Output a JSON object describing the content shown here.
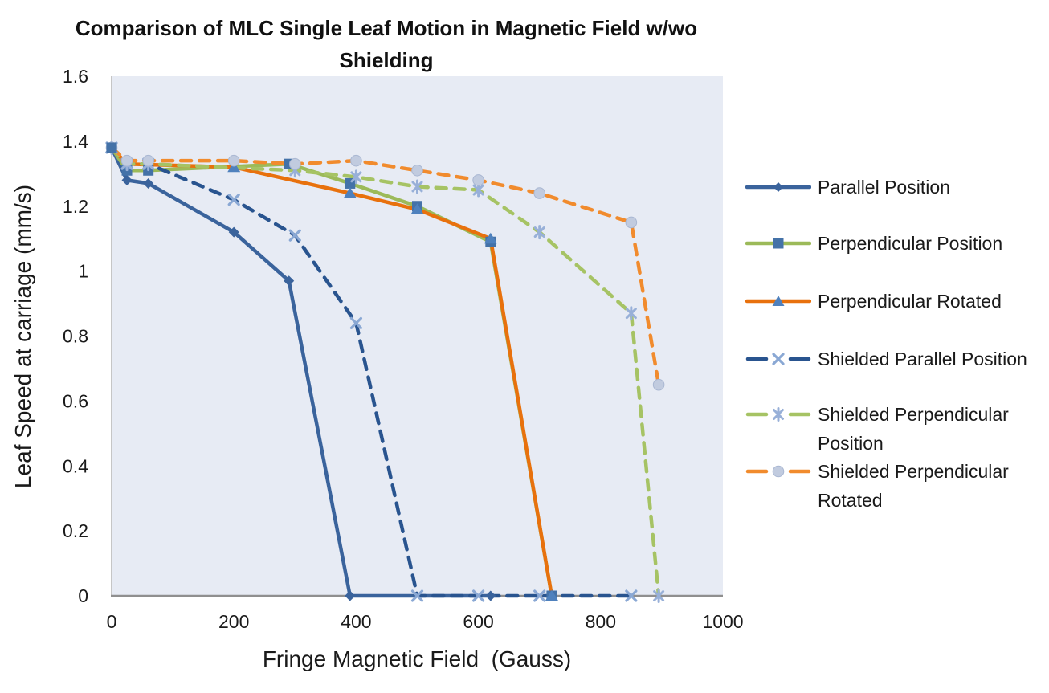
{
  "chart_data": {
    "type": "line",
    "title": "Comparison of MLC Single Leaf Motion in Magnetic Field w/wo Shielding",
    "title_lines": [
      "Comparison of MLC Single Leaf Motion in Magnetic Field w/wo",
      "Shielding"
    ],
    "xlabel": "Fringe Magnetic Field  (Gauss)",
    "ylabel": "Leaf Speed at carriage (mm/s)",
    "xlim": [
      0,
      1000
    ],
    "ylim": [
      0,
      1.6
    ],
    "x_ticks": [
      "0",
      "200",
      "400",
      "600",
      "800",
      "1000"
    ],
    "y_ticks": [
      "0",
      "0.2",
      "0.4",
      "0.6",
      "0.8",
      "1",
      "1.2",
      "1.4",
      "1.6"
    ],
    "grid": false,
    "legend_position": "right",
    "plot_bg_color": "#e7ebf4",
    "axis_line_color": "#8f8f8f",
    "y_axis_line_color": "#b3b3b3",
    "text_color": "#1a1a1a",
    "series": [
      {
        "name": "Parallel Position",
        "line_style": "solid",
        "color": "#3a639c",
        "marker": "diamond",
        "marker_color": "#3a639c",
        "x": [
          0,
          25,
          60,
          200,
          290,
          390,
          620
        ],
        "y": [
          1.38,
          1.28,
          1.27,
          1.12,
          0.97,
          0,
          0
        ]
      },
      {
        "name": "Perpendicular Position",
        "line_style": "solid",
        "color": "#9cba59",
        "marker": "square",
        "marker_color": "#4472a8",
        "x": [
          0,
          25,
          60,
          290,
          390,
          500,
          620,
          720
        ],
        "y": [
          1.38,
          1.31,
          1.31,
          1.33,
          1.27,
          1.2,
          1.09,
          0
        ]
      },
      {
        "name": "Perpendicular Rotated",
        "line_style": "solid",
        "color": "#e8710d",
        "marker": "triangle",
        "marker_color": "#4f81bd",
        "x": [
          0,
          25,
          200,
          390,
          500,
          620,
          720
        ],
        "y": [
          1.38,
          1.33,
          1.32,
          1.24,
          1.19,
          1.1,
          0
        ]
      },
      {
        "name": "Shielded Parallel Position",
        "line_style": "dashed",
        "color": "#29548f",
        "marker": "x",
        "marker_color": "#8aa8d4",
        "x": [
          0,
          25,
          60,
          200,
          300,
          400,
          500,
          600,
          700,
          850
        ],
        "y": [
          1.38,
          1.33,
          1.33,
          1.22,
          1.11,
          0.84,
          0,
          0,
          0,
          0
        ]
      },
      {
        "name": "Shielded Perpendicular Position",
        "line_style": "dashed",
        "color": "#a6c364",
        "marker": "star",
        "marker_color": "#98b0d8",
        "x": [
          0,
          25,
          60,
          300,
          400,
          500,
          600,
          700,
          850,
          895
        ],
        "y": [
          1.38,
          1.33,
          1.33,
          1.31,
          1.29,
          1.26,
          1.25,
          1.12,
          0.87,
          0
        ]
      },
      {
        "name": "Shielded Perpendicular Rotated",
        "line_style": "dashed",
        "color": "#f18b2d",
        "marker": "circle",
        "marker_color": "#c1cbdf",
        "marker_edge_color": "#a9b7d2",
        "x": [
          0,
          25,
          60,
          200,
          300,
          400,
          500,
          600,
          700,
          850,
          895
        ],
        "y": [
          1.38,
          1.34,
          1.34,
          1.34,
          1.33,
          1.34,
          1.31,
          1.28,
          1.24,
          1.15,
          0.65
        ]
      }
    ]
  }
}
